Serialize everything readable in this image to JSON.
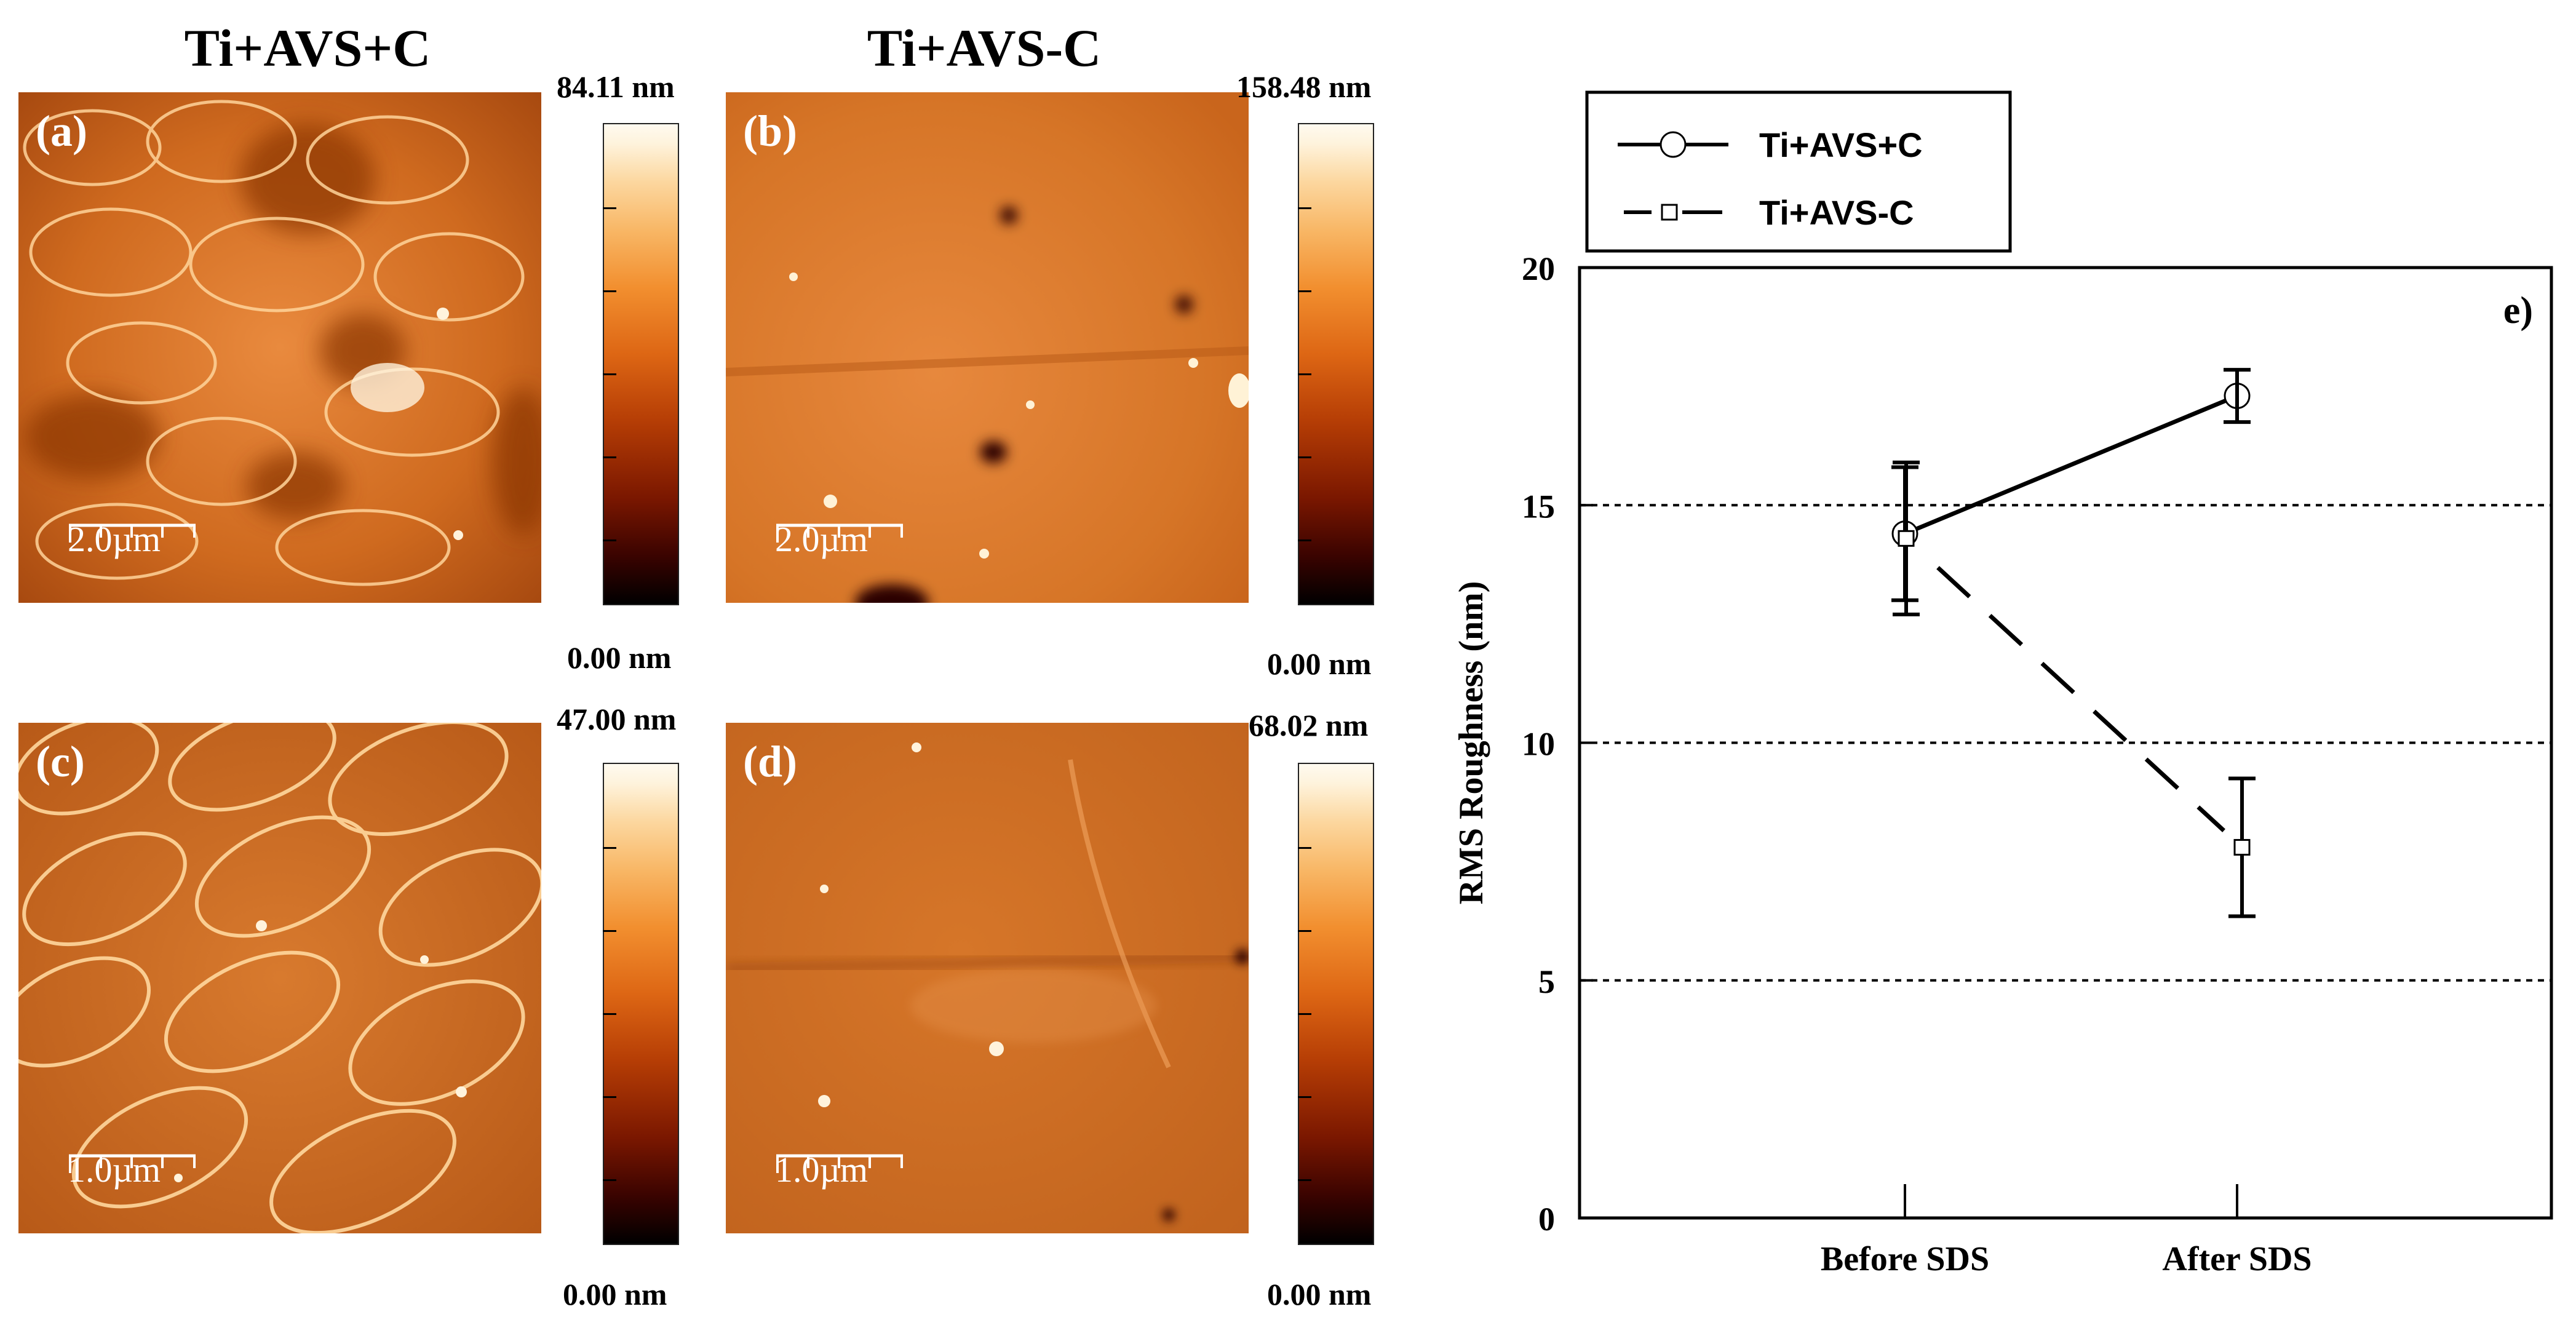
{
  "columns": {
    "left_title": "Ti+AVS+C",
    "right_title": "Ti+AVS-C"
  },
  "panels": {
    "a": {
      "label": "(a)",
      "scale_bar": "2.0µm",
      "color_max": "84.11 nm",
      "color_min": "0.00 nm"
    },
    "b": {
      "label": "(b)",
      "scale_bar": "2.0µm",
      "color_max": "158.48 nm",
      "color_min": "0.00 nm"
    },
    "c": {
      "label": "(c)",
      "scale_bar": "1.0µm",
      "color_max": "47.00 nm",
      "color_min": "0.00 nm"
    },
    "d": {
      "label": "(d)",
      "scale_bar": "1.0µm",
      "color_max": "68.02 nm",
      "color_min": "0.00 nm"
    }
  },
  "colors": {
    "afm_dark": "#7a2a02",
    "afm_mid": "#c8621a",
    "afm_light": "#f7b06a",
    "chart_line": "#000000"
  },
  "chart_data": {
    "type": "line",
    "panel_label": "e)",
    "categories": [
      "Before SDS",
      "After SDS"
    ],
    "ylabel": "RMS Roughness (nm)",
    "xlabel": "",
    "ylim": [
      0,
      20
    ],
    "yticks": [
      0,
      5,
      10,
      15,
      20
    ],
    "gridlines": [
      5,
      10,
      15
    ],
    "legend_position": "top-left outside",
    "series": [
      {
        "name": "Ti+AVS+C",
        "marker": "circle",
        "line": "solid",
        "values": [
          14.4,
          17.3
        ],
        "errors": [
          1.4,
          0.55
        ]
      },
      {
        "name": "Ti+AVS-C",
        "marker": "square",
        "line": "dashed",
        "values": [
          14.3,
          7.8
        ],
        "errors": [
          1.6,
          1.45
        ]
      }
    ]
  }
}
